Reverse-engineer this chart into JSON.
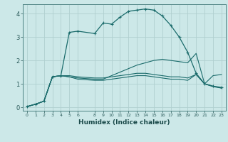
{
  "title": "",
  "xlabel": "Humidex (Indice chaleur)",
  "bg_color": "#cce8e8",
  "grid_color": "#b0d0d0",
  "line_color": "#1a6b6b",
  "xlim": [
    -0.5,
    23.5
  ],
  "ylim": [
    -0.15,
    4.4
  ],
  "xticks": [
    0,
    1,
    2,
    3,
    4,
    5,
    6,
    8,
    9,
    10,
    11,
    12,
    13,
    14,
    15,
    16,
    17,
    18,
    19,
    20,
    21,
    22,
    23
  ],
  "yticks": [
    0,
    1,
    2,
    3,
    4
  ],
  "curve1_x": [
    0,
    1,
    2,
    3,
    4,
    5,
    6,
    8,
    9,
    10,
    11,
    12,
    13,
    14,
    15,
    16,
    17,
    18,
    19,
    20,
    21,
    22,
    23
  ],
  "curve1_y": [
    0.03,
    0.13,
    0.26,
    1.3,
    1.35,
    3.2,
    3.25,
    3.15,
    3.6,
    3.55,
    3.85,
    4.1,
    4.15,
    4.2,
    4.15,
    3.9,
    3.5,
    3.0,
    2.35,
    1.45,
    1.0,
    0.9,
    0.85
  ],
  "curve2_x": [
    0,
    1,
    2,
    3,
    4,
    5,
    6,
    8,
    9,
    10,
    11,
    12,
    13,
    14,
    15,
    16,
    17,
    18,
    19,
    20,
    21,
    22,
    23
  ],
  "curve2_y": [
    0.03,
    0.13,
    0.26,
    1.3,
    1.35,
    1.35,
    1.3,
    1.25,
    1.25,
    1.3,
    1.35,
    1.4,
    1.45,
    1.45,
    1.4,
    1.35,
    1.3,
    1.3,
    1.25,
    1.4,
    1.0,
    1.35,
    1.4
  ],
  "curve3_x": [
    0,
    1,
    2,
    3,
    4,
    5,
    6,
    8,
    9,
    10,
    11,
    12,
    13,
    14,
    15,
    16,
    17,
    18,
    19,
    20,
    21,
    22,
    23
  ],
  "curve3_y": [
    0.03,
    0.13,
    0.26,
    1.3,
    1.35,
    1.3,
    1.25,
    1.2,
    1.2,
    1.35,
    1.5,
    1.65,
    1.8,
    1.9,
    2.0,
    2.05,
    2.0,
    1.95,
    1.9,
    2.3,
    1.0,
    0.9,
    0.82
  ],
  "curve4_x": [
    0,
    1,
    2,
    3,
    4,
    5,
    6,
    8,
    9,
    10,
    11,
    12,
    13,
    14,
    15,
    16,
    17,
    18,
    19,
    20,
    21,
    22,
    23
  ],
  "curve4_y": [
    0.03,
    0.13,
    0.26,
    1.3,
    1.35,
    1.3,
    1.2,
    1.15,
    1.15,
    1.2,
    1.25,
    1.3,
    1.35,
    1.35,
    1.3,
    1.25,
    1.2,
    1.2,
    1.15,
    1.4,
    1.0,
    0.88,
    0.82
  ]
}
